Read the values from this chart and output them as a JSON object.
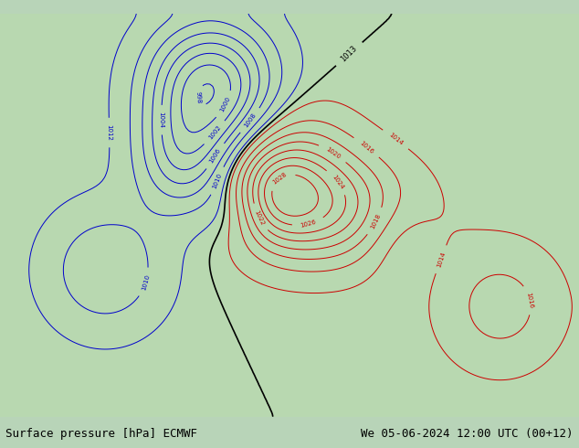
{
  "title_left": "Surface pressure [hPa] ECMWF",
  "title_right": "We 05-06-2024 12:00 UTC (00+12)",
  "background_color": "#c8e6c9",
  "land_color": "#a8d5a2",
  "ocean_color": "#d0e8f0",
  "fig_width": 6.34,
  "fig_height": 4.9,
  "dpi": 100,
  "bottom_bar_color": "#d8d8d8",
  "font_size_title": 9,
  "contour_interval": 2,
  "pressure_min": 970,
  "pressure_max": 1030,
  "blue_contour_color": "#0000cc",
  "red_contour_color": "#cc0000",
  "black_contour_color": "#000000"
}
